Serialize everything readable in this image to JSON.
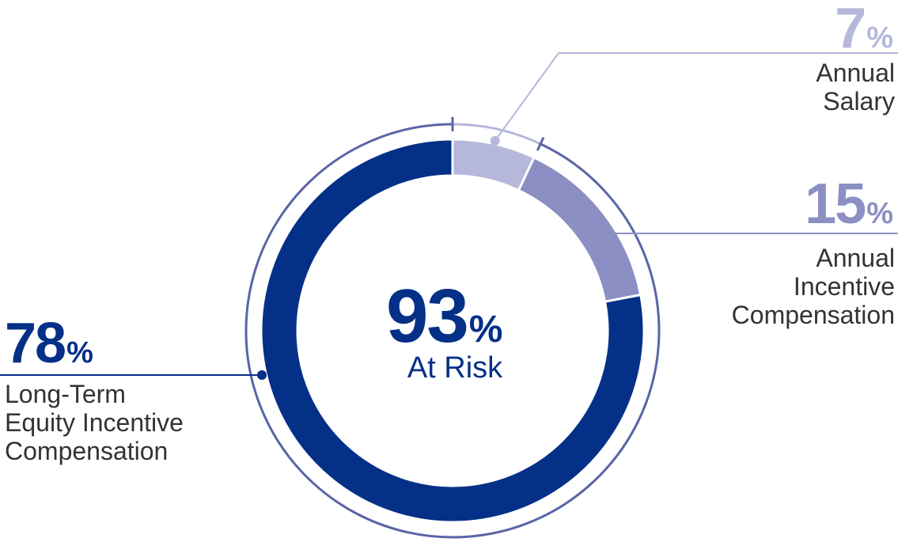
{
  "chart_data": {
    "type": "pie",
    "categories": [
      "Annual Salary",
      "Annual Incentive Compensation",
      "Long-Term Equity Incentive Compensation"
    ],
    "values": [
      7,
      15,
      78
    ],
    "unit": "%",
    "colors": [
      "#b5b7db",
      "#8b8fc4",
      "#053087"
    ],
    "outer_ring_color": "#5a64a6",
    "center": {
      "value": "93",
      "unit": "%",
      "label": "At Risk",
      "color": "#053087"
    },
    "labels": [
      {
        "value": "7",
        "unit": "%",
        "lines": [
          "Annual",
          "Salary"
        ],
        "color": "#b5b7db"
      },
      {
        "value": "15",
        "unit": "%",
        "lines": [
          "Annual",
          "Incentive",
          "Compensation"
        ],
        "color": "#8b8fc4"
      },
      {
        "value": "78",
        "unit": "%",
        "lines": [
          "Long-Term",
          "Equity Incentive",
          "Compensation"
        ],
        "color": "#053087"
      }
    ]
  }
}
